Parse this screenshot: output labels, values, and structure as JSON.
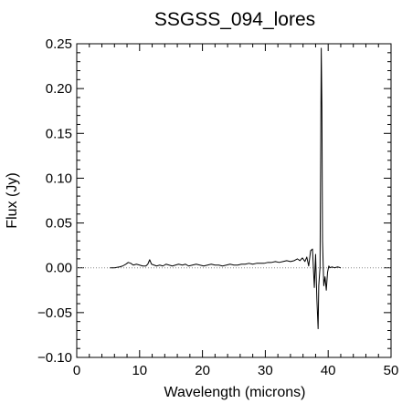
{
  "chart_data": {
    "type": "line",
    "title": "SSGSS_094_lores",
    "xlabel": "Wavelength (microns)",
    "ylabel": "Flux (Jy)",
    "xlim": [
      0,
      50
    ],
    "ylim": [
      -0.1,
      0.25
    ],
    "x_ticks": [
      0,
      10,
      20,
      30,
      40,
      50
    ],
    "x_tick_labels": [
      "0",
      "10",
      "20",
      "30",
      "40",
      "50"
    ],
    "y_ticks": [
      -0.1,
      -0.05,
      0.0,
      0.05,
      0.1,
      0.15,
      0.2,
      0.25
    ],
    "y_tick_labels": [
      "−0.10",
      "−0.05",
      "0.00",
      "0.05",
      "0.10",
      "0.15",
      "0.20",
      "0.25"
    ],
    "grid": false,
    "reference_line": {
      "y": 0.0,
      "style": "dotted"
    },
    "series": [
      {
        "color": "#000000",
        "x": [
          5.3,
          6.0,
          6.8,
          7.3,
          7.8,
          8.2,
          8.6,
          9.0,
          9.5,
          10.0,
          10.5,
          11.0,
          11.3,
          11.6,
          11.9,
          12.3,
          12.7,
          13.2,
          13.7,
          14.2,
          14.7,
          15.2,
          15.7,
          16.2,
          16.8,
          17.3,
          17.8,
          18.4,
          19.0,
          19.6,
          20.2,
          20.8,
          21.4,
          22.0,
          22.6,
          23.2,
          23.8,
          24.4,
          25.0,
          25.6,
          26.2,
          26.8,
          27.4,
          28.0,
          28.6,
          29.2,
          29.8,
          30.4,
          31.0,
          31.6,
          32.2,
          32.8,
          33.4,
          34.0,
          34.6,
          35.1,
          35.5,
          35.9,
          36.3,
          36.6,
          36.9,
          37.2,
          37.5,
          37.8,
          38.0,
          38.2,
          38.4,
          38.5,
          38.7,
          38.9,
          39.0,
          39.1,
          39.3,
          39.5,
          39.7,
          39.9,
          40.1,
          40.3,
          40.6,
          41.0,
          41.5,
          42.0
        ],
        "y": [
          0.0,
          0.0,
          0.001,
          0.002,
          0.004,
          0.006,
          0.005,
          0.003,
          0.004,
          0.003,
          0.002,
          0.002,
          0.004,
          0.009,
          0.004,
          0.003,
          0.002,
          0.003,
          0.002,
          0.004,
          0.003,
          0.002,
          0.003,
          0.004,
          0.003,
          0.004,
          0.002,
          0.003,
          0.004,
          0.003,
          0.002,
          0.003,
          0.004,
          0.003,
          0.003,
          0.002,
          0.003,
          0.004,
          0.003,
          0.003,
          0.004,
          0.004,
          0.005,
          0.004,
          0.005,
          0.005,
          0.005,
          0.006,
          0.006,
          0.007,
          0.006,
          0.007,
          0.008,
          0.007,
          0.008,
          0.01,
          0.008,
          0.011,
          0.007,
          0.012,
          0.002,
          0.019,
          0.021,
          -0.022,
          0.015,
          -0.035,
          -0.068,
          -0.02,
          0.0,
          0.245,
          0.18,
          0.03,
          -0.02,
          -0.01,
          -0.025,
          -0.005,
          0.002,
          0.0,
          0.001,
          0.0,
          0.001,
          0.0
        ]
      }
    ]
  }
}
